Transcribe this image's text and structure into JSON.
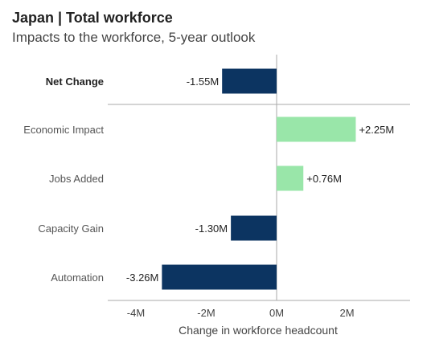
{
  "chart_data": {
    "type": "bar",
    "orientation": "horizontal",
    "title": "Japan | Total workforce",
    "subtitle": "Impacts to the workforce, 5-year outlook",
    "xlabel": "Change in workforce headcount",
    "ylabel": "",
    "xlim": [
      -4.9,
      3.8
    ],
    "xticks": [
      -4,
      -2,
      0,
      2
    ],
    "xtick_labels": [
      "-4M",
      "-2M",
      "0M",
      "2M"
    ],
    "categories": [
      "Net Change",
      "Economic Impact",
      "Jobs Added",
      "Capacity Gain",
      "Automation"
    ],
    "values": [
      -1.55,
      2.25,
      0.76,
      -1.3,
      -3.26
    ],
    "value_labels": [
      "-1.55M",
      "+2.25M",
      "+0.76M",
      "-1.30M",
      "-3.26M"
    ],
    "emphasized_category": "Net Change",
    "grid": false,
    "colors": {
      "negative": "#0c3461",
      "positive": "#99e6a9",
      "axis": "#aaaaaa",
      "text": "#444444"
    }
  }
}
